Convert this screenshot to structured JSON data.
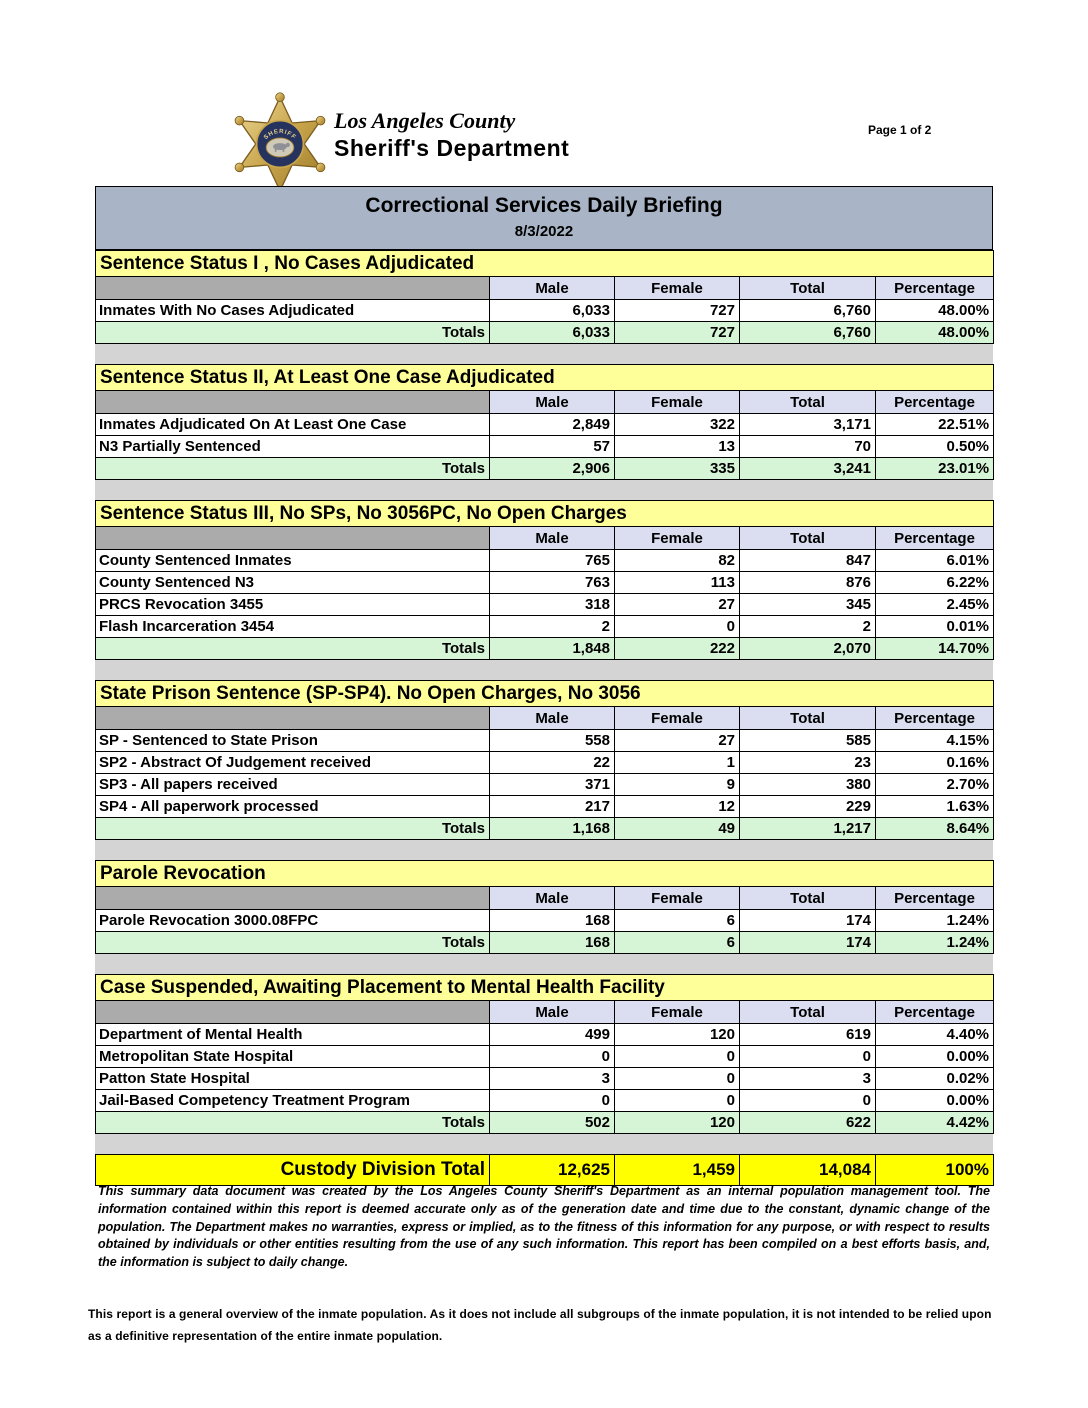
{
  "page": {
    "page_number": "Page 1 of 2"
  },
  "logo": {
    "county": "Los Angeles County",
    "department": "Sheriff's Department"
  },
  "title_bar": {
    "title": "Correctional Services Daily Briefing",
    "date": "8/3/2022"
  },
  "columns": [
    "Male",
    "Female",
    "Total",
    "Percentage"
  ],
  "totals_label": "Totals",
  "sections": [
    {
      "header": "Sentence Status I , No Cases Adjudicated",
      "rows": [
        {
          "label": "Inmates With No Cases Adjudicated",
          "male": "6,033",
          "female": "727",
          "total": "6,760",
          "percentage": "48.00%"
        }
      ],
      "totals": {
        "male": "6,033",
        "female": "727",
        "total": "6,760",
        "percentage": "48.00%"
      }
    },
    {
      "header": "Sentence Status II, At Least One Case Adjudicated",
      "rows": [
        {
          "label": "Inmates Adjudicated On At Least One Case",
          "male": "2,849",
          "female": "322",
          "total": "3,171",
          "percentage": "22.51%"
        },
        {
          "label": "N3 Partially Sentenced",
          "male": "57",
          "female": "13",
          "total": "70",
          "percentage": "0.50%"
        }
      ],
      "totals": {
        "male": "2,906",
        "female": "335",
        "total": "3,241",
        "percentage": "23.01%"
      }
    },
    {
      "header": "Sentence Status III, No SPs, No 3056PC, No Open Charges",
      "rows": [
        {
          "label": "County Sentenced Inmates",
          "male": "765",
          "female": "82",
          "total": "847",
          "percentage": "6.01%"
        },
        {
          "label": "County Sentenced N3",
          "male": "763",
          "female": "113",
          "total": "876",
          "percentage": "6.22%"
        },
        {
          "label": "PRCS Revocation 3455",
          "male": "318",
          "female": "27",
          "total": "345",
          "percentage": "2.45%"
        },
        {
          "label": "Flash Incarceration 3454",
          "male": "2",
          "female": "0",
          "total": "2",
          "percentage": "0.01%"
        }
      ],
      "totals": {
        "male": "1,848",
        "female": "222",
        "total": "2,070",
        "percentage": "14.70%"
      }
    },
    {
      "header": "State Prison Sentence (SP-SP4). No Open Charges, No 3056",
      "rows": [
        {
          "label": "SP - Sentenced to State Prison",
          "male": "558",
          "female": "27",
          "total": "585",
          "percentage": "4.15%"
        },
        {
          "label": "SP2 - Abstract Of Judgement received",
          "male": "22",
          "female": "1",
          "total": "23",
          "percentage": "0.16%"
        },
        {
          "label": "SP3 - All papers received",
          "male": "371",
          "female": "9",
          "total": "380",
          "percentage": "2.70%"
        },
        {
          "label": "SP4 - All paperwork processed",
          "male": "217",
          "female": "12",
          "total": "229",
          "percentage": "1.63%"
        }
      ],
      "totals": {
        "male": "1,168",
        "female": "49",
        "total": "1,217",
        "percentage": "8.64%"
      }
    },
    {
      "header": "Parole Revocation",
      "rows": [
        {
          "label": "Parole Revocation 3000.08FPC",
          "male": "168",
          "female": "6",
          "total": "174",
          "percentage": "1.24%"
        }
      ],
      "totals": {
        "male": "168",
        "female": "6",
        "total": "174",
        "percentage": "1.24%"
      }
    },
    {
      "header": "Case Suspended, Awaiting Placement to Mental Health Facility",
      "rows": [
        {
          "label": "Department of Mental Health",
          "male": "499",
          "female": "120",
          "total": "619",
          "percentage": "4.40%"
        },
        {
          "label": "Metropolitan State Hospital",
          "male": "0",
          "female": "0",
          "total": "0",
          "percentage": "0.00%"
        },
        {
          "label": "Patton State Hospital",
          "male": "3",
          "female": "0",
          "total": "3",
          "percentage": "0.02%"
        },
        {
          "label": "Jail-Based Competency Treatment Program",
          "male": "0",
          "female": "0",
          "total": "0",
          "percentage": "0.00%"
        }
      ],
      "totals": {
        "male": "502",
        "female": "120",
        "total": "622",
        "percentage": "4.42%"
      }
    }
  ],
  "grand_total": {
    "label": "Custody Division Total",
    "male": "12,625",
    "female": "1,459",
    "total": "14,084",
    "percentage": "100%"
  },
  "footer": {
    "disclaimer": "This summary data document was created by the Los Angeles County Sheriff's Department as an internal population management tool.  The information contained within this report is deemed accurate only as of the generation date and time due to the constant, dynamic change of the population.  The Department makes no warranties, express or implied, as to the fitness of this information for any purpose, or with respect to results obtained by individuals or other entities resulting from the use of any such information.  This report has been compiled on a best efforts basis, and, the information is subject to daily change.",
    "note": "This report is a general overview of the inmate population.  As it does not include all subgroups of the inmate population, it is not intended to be relied upon as a definitive representation of the entire inmate population."
  },
  "colors": {
    "title_bar_bg": "#A9B5C6",
    "section_header_bg": "#FFFF99",
    "column_header_bg": "#DBDEF1",
    "column_header_first_bg": "#ABABAB",
    "totals_row_bg": "#D6F5D6",
    "grand_total_bg": "#FFFF00",
    "spacer_bg": "#D4D4D4",
    "badge_gold": "#C9A64D",
    "badge_navy": "#26335E"
  }
}
